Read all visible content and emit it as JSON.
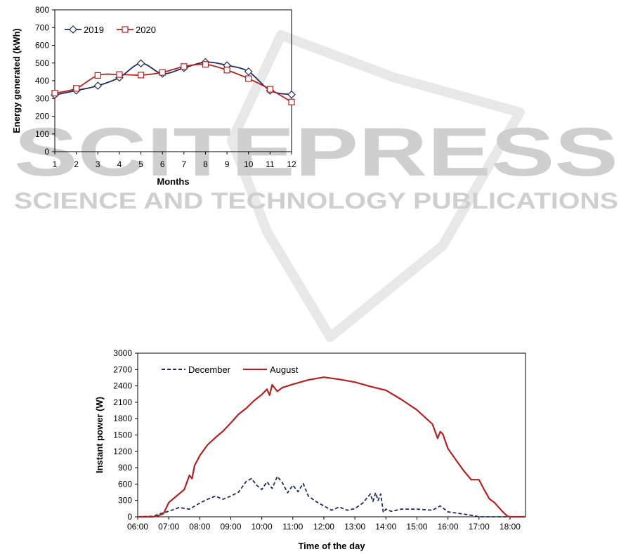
{
  "watermark": {
    "brand": "SCITEPRESS",
    "tagline": "SCIENCE AND TECHNOLOGY PUBLICATIONS"
  },
  "chart_data": [
    {
      "type": "line",
      "title": "",
      "xlabel": "Months",
      "ylabel": "Energy generated (kWh)",
      "x": [
        1,
        2,
        3,
        4,
        5,
        6,
        7,
        8,
        9,
        10,
        11,
        12
      ],
      "xlim": [
        1,
        12
      ],
      "ylim": [
        0,
        800
      ],
      "yticks": [
        0,
        100,
        200,
        300,
        400,
        500,
        600,
        700,
        800
      ],
      "legend_position": "top-left",
      "grid": false,
      "series": [
        {
          "name": "2019",
          "color": "#1f2d5c",
          "marker": "diamond",
          "values": [
            320,
            345,
            372,
            418,
            498,
            440,
            472,
            505,
            487,
            452,
            345,
            322
          ]
        },
        {
          "name": "2020",
          "color": "#b22222",
          "marker": "square",
          "values": [
            330,
            357,
            430,
            435,
            432,
            447,
            480,
            492,
            460,
            412,
            352,
            280
          ]
        }
      ]
    },
    {
      "type": "line",
      "title": "",
      "xlabel": "Time of the day",
      "ylabel": "Instant power (W)",
      "ylim": [
        0,
        3000
      ],
      "yticks": [
        0,
        300,
        600,
        900,
        1200,
        1500,
        1800,
        2100,
        2400,
        2700,
        3000
      ],
      "xlim": [
        "06:00",
        "18:30"
      ],
      "xticks": [
        "06:00",
        "07:00",
        "08:00",
        "09:00",
        "10:00",
        "11:00",
        "12:00",
        "13:00",
        "14:00",
        "15:00",
        "16:00",
        "17:00",
        "18:00"
      ],
      "legend_position": "top-left",
      "grid": false,
      "series": [
        {
          "name": "December",
          "color": "#1f2d5c",
          "style": "dashed",
          "x": [
            "06:00",
            "06:30",
            "06:45",
            "07:00",
            "07:20",
            "07:40",
            "08:00",
            "08:15",
            "08:30",
            "08:45",
            "09:00",
            "09:15",
            "09:30",
            "09:40",
            "09:50",
            "10:00",
            "10:10",
            "10:20",
            "10:30",
            "10:40",
            "10:50",
            "11:00",
            "11:10",
            "11:20",
            "11:30",
            "11:45",
            "12:00",
            "12:15",
            "12:30",
            "12:45",
            "13:00",
            "13:15",
            "13:30",
            "13:35",
            "13:40",
            "13:45",
            "13:50",
            "13:55",
            "14:00",
            "14:10",
            "14:30",
            "15:00",
            "15:30",
            "15:45",
            "16:00",
            "16:30",
            "16:50",
            "17:00",
            "17:30",
            "18:00",
            "18:30"
          ],
          "values": [
            0,
            10,
            60,
            100,
            170,
            140,
            250,
            320,
            380,
            320,
            380,
            450,
            650,
            700,
            580,
            500,
            640,
            520,
            740,
            620,
            440,
            580,
            460,
            610,
            380,
            280,
            200,
            120,
            180,
            120,
            150,
            250,
            420,
            280,
            440,
            300,
            420,
            80,
            140,
            100,
            140,
            140,
            120,
            200,
            90,
            50,
            20,
            0,
            0,
            0,
            0
          ]
        },
        {
          "name": "August",
          "color": "#b22222",
          "style": "solid",
          "x": [
            "06:00",
            "06:30",
            "06:40",
            "06:50",
            "07:00",
            "07:15",
            "07:30",
            "07:40",
            "07:45",
            "07:50",
            "08:00",
            "08:15",
            "08:30",
            "08:45",
            "09:00",
            "09:15",
            "09:30",
            "09:45",
            "10:00",
            "10:10",
            "10:15",
            "10:20",
            "10:30",
            "10:40",
            "11:00",
            "11:30",
            "12:00",
            "12:30",
            "13:00",
            "13:30",
            "14:00",
            "14:30",
            "15:00",
            "15:30",
            "15:40",
            "15:45",
            "15:50",
            "16:00",
            "16:15",
            "16:30",
            "16:45",
            "17:00",
            "17:10",
            "17:20",
            "17:30",
            "17:45",
            "17:55",
            "18:00",
            "18:30"
          ],
          "values": [
            0,
            0,
            20,
            60,
            260,
            380,
            500,
            760,
            700,
            940,
            1120,
            1320,
            1450,
            1570,
            1720,
            1880,
            1990,
            2130,
            2240,
            2340,
            2230,
            2420,
            2300,
            2370,
            2430,
            2510,
            2560,
            2520,
            2470,
            2390,
            2320,
            2150,
            1960,
            1700,
            1440,
            1560,
            1520,
            1250,
            1050,
            850,
            680,
            680,
            500,
            330,
            260,
            100,
            10,
            0,
            0
          ]
        }
      ]
    }
  ]
}
